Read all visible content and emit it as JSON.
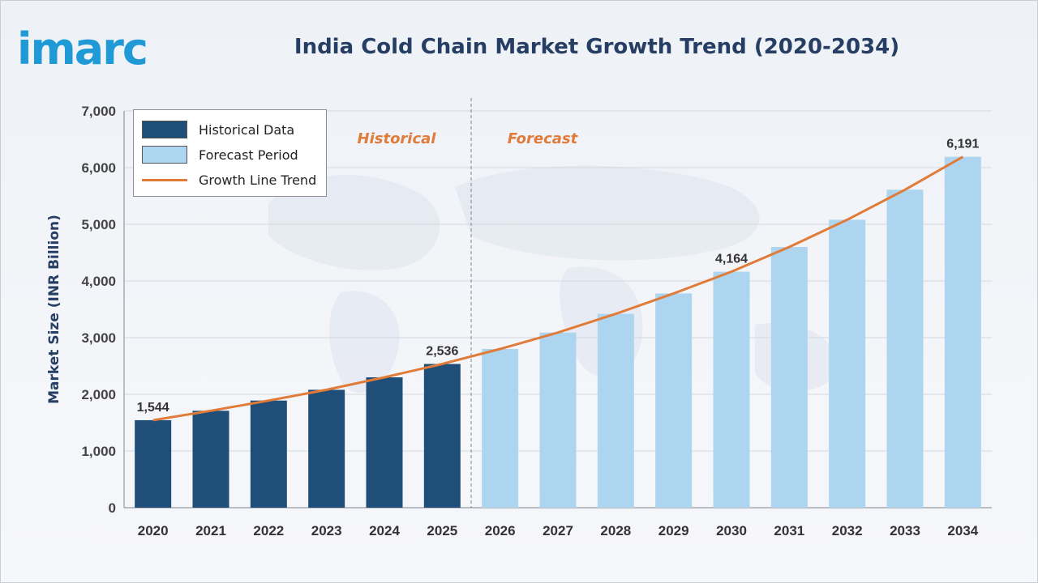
{
  "brand": {
    "logo_text": "imarc",
    "color": "#1f9ad6"
  },
  "title": "India Cold Chain Market Growth Trend (2020-2034)",
  "legend": {
    "historical": "Historical Data",
    "forecast": "Forecast Period",
    "trend": "Growth Line Trend"
  },
  "period_labels": {
    "historical": "Historical",
    "forecast": "Forecast"
  },
  "chart_data": {
    "type": "bar",
    "title": "India Cold Chain Market Growth Trend (2020-2034)",
    "xlabel": "",
    "ylabel": "Market Size (INR Billion)",
    "ylim": [
      0,
      7000
    ],
    "yticks": [
      0,
      1000,
      2000,
      3000,
      4000,
      5000,
      6000,
      7000
    ],
    "ytick_labels": [
      "0",
      "1,000",
      "2,000",
      "3,000",
      "4,000",
      "5,000",
      "6,000",
      "7,000"
    ],
    "categories": [
      "2020",
      "2021",
      "2022",
      "2023",
      "2024",
      "2025",
      "2026",
      "2027",
      "2028",
      "2029",
      "2030",
      "2031",
      "2032",
      "2033",
      "2034"
    ],
    "values": [
      1544,
      1710,
      1890,
      2080,
      2300,
      2536,
      2800,
      3090,
      3420,
      3780,
      4164,
      4600,
      5080,
      5610,
      6191
    ],
    "historical_count": 6,
    "data_labels": [
      {
        "index": 0,
        "text": "1,544"
      },
      {
        "index": 5,
        "text": "2,536"
      },
      {
        "index": 10,
        "text": "4,164"
      },
      {
        "index": 14,
        "text": "6,191"
      }
    ],
    "grid": true,
    "legend_position": "top-left",
    "colors": {
      "historical": "#1f4e79",
      "forecast": "#aed5ef",
      "trend": "#e07b39",
      "period_label": "#e07b39"
    }
  }
}
